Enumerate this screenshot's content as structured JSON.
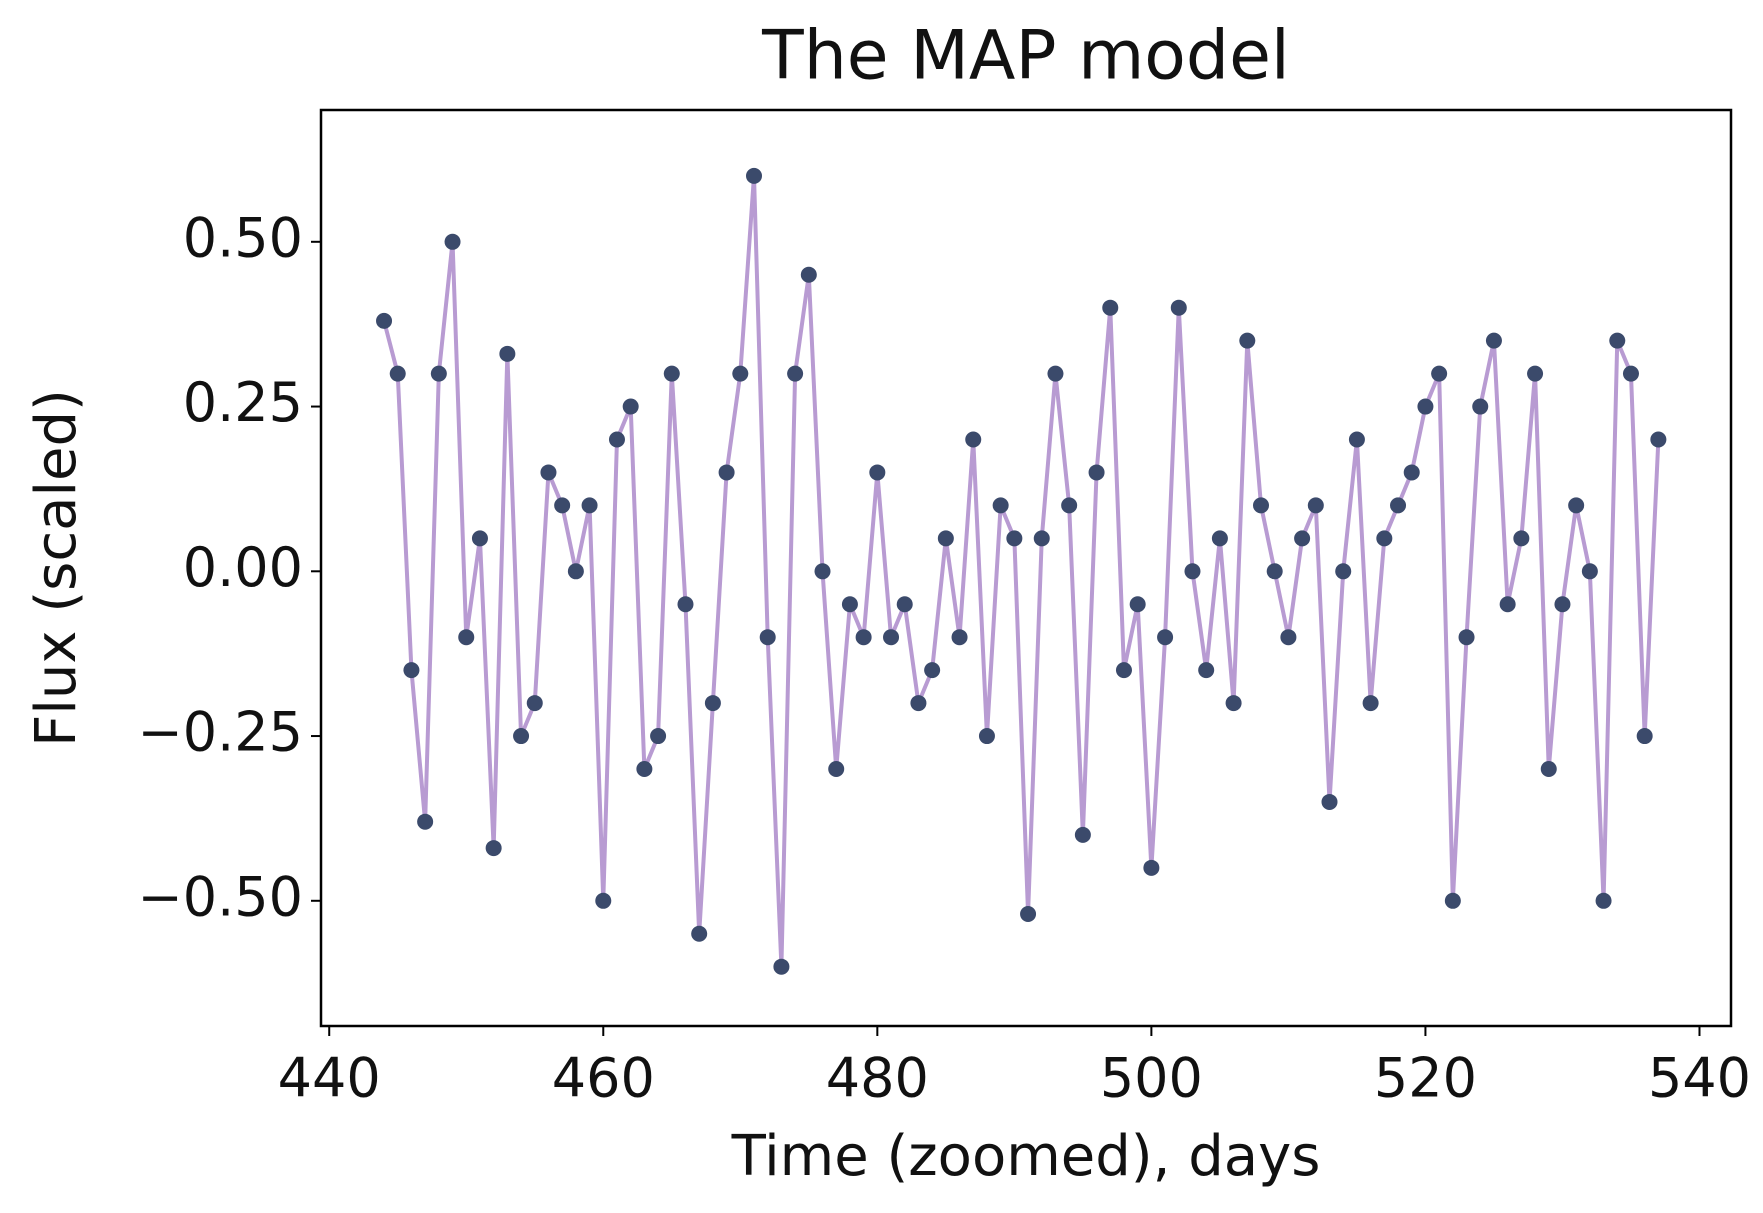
{
  "chart_data": {
    "type": "scatter",
    "title": "The MAP model",
    "xlabel": "Time (zoomed), days",
    "ylabel": "Flux (scaled)",
    "xlim": [
      439.4,
      542.3
    ],
    "ylim": [
      -0.69,
      0.7
    ],
    "xticks": [
      440,
      460,
      480,
      500,
      520,
      540
    ],
    "yticks": [
      {
        "value": -0.5,
        "label": "−0.50"
      },
      {
        "value": -0.25,
        "label": "−0.25"
      },
      {
        "value": 0,
        "label": "0.00"
      },
      {
        "value": 0.25,
        "label": "0.25"
      },
      {
        "value": 0.5,
        "label": "0.50"
      }
    ],
    "grid": false,
    "x": [
      444,
      445,
      446,
      447,
      448,
      449,
      450,
      451,
      452,
      453,
      454,
      455,
      456,
      457,
      458,
      459,
      460,
      461,
      462,
      463,
      464,
      465,
      466,
      467,
      468,
      469,
      470,
      471,
      472,
      473,
      474,
      475,
      476,
      477,
      478,
      479,
      480,
      481,
      482,
      483,
      484,
      485,
      486,
      487,
      488,
      489,
      490,
      491,
      492,
      493,
      494,
      495,
      496,
      497,
      498,
      499,
      500,
      501,
      502,
      503,
      504,
      505,
      506,
      507,
      508,
      509,
      510,
      511,
      512,
      513,
      514,
      515,
      516,
      517,
      518,
      519,
      520,
      521,
      522,
      523,
      524,
      525,
      526,
      527,
      528,
      529,
      530,
      531,
      532,
      533,
      534,
      535,
      536,
      537
    ],
    "series": [
      {
        "style": "line",
        "color": "#b89bd2",
        "values": [
          0.38,
          0.3,
          -0.15,
          -0.38,
          0.3,
          0.5,
          -0.1,
          0.05,
          -0.42,
          0.33,
          -0.25,
          -0.2,
          0.15,
          0.1,
          0.0,
          0.1,
          -0.5,
          0.2,
          0.25,
          -0.3,
          -0.25,
          0.3,
          -0.05,
          -0.55,
          -0.2,
          0.15,
          0.3,
          0.6,
          -0.1,
          -0.6,
          0.3,
          0.45,
          0.0,
          -0.3,
          -0.05,
          -0.1,
          0.15,
          -0.1,
          -0.05,
          -0.2,
          -0.15,
          0.05,
          -0.1,
          0.2,
          -0.25,
          0.1,
          0.05,
          -0.52,
          0.05,
          0.3,
          0.1,
          -0.4,
          0.15,
          0.4,
          -0.15,
          -0.05,
          -0.45,
          -0.1,
          0.4,
          0.0,
          -0.15,
          0.05,
          -0.2,
          0.35,
          0.1,
          0.0,
          -0.1,
          0.05,
          0.1,
          -0.35,
          0.0,
          0.2,
          -0.2,
          0.05,
          0.1,
          0.15,
          0.25,
          0.3,
          -0.5,
          -0.1,
          0.25,
          0.35,
          -0.05,
          0.05,
          0.3,
          -0.3,
          -0.05,
          0.1,
          0.0,
          -0.5,
          0.35,
          0.3,
          -0.25,
          0.2
        ]
      },
      {
        "style": "points",
        "color": "#3b4a6b",
        "values": [
          0.38,
          0.3,
          -0.15,
          -0.38,
          0.3,
          0.5,
          -0.1,
          0.05,
          -0.42,
          0.33,
          -0.25,
          -0.2,
          0.15,
          0.1,
          0.0,
          0.1,
          -0.5,
          0.2,
          0.25,
          -0.3,
          -0.25,
          0.3,
          -0.05,
          -0.55,
          -0.2,
          0.15,
          0.3,
          0.6,
          -0.1,
          -0.6,
          0.3,
          0.45,
          0.0,
          -0.3,
          -0.05,
          -0.1,
          0.15,
          -0.1,
          -0.05,
          -0.2,
          -0.15,
          0.05,
          -0.1,
          0.2,
          -0.25,
          0.1,
          0.05,
          -0.52,
          0.05,
          0.3,
          0.1,
          -0.4,
          0.15,
          0.4,
          -0.15,
          -0.05,
          -0.45,
          -0.1,
          0.4,
          0.0,
          -0.15,
          0.05,
          -0.2,
          0.35,
          0.1,
          0.0,
          -0.1,
          0.05,
          0.1,
          -0.35,
          0.0,
          0.2,
          -0.2,
          0.05,
          0.1,
          0.15,
          0.25,
          0.3,
          -0.5,
          -0.1,
          0.25,
          0.35,
          -0.05,
          0.05,
          0.3,
          -0.3,
          -0.05,
          0.1,
          0.0,
          -0.5,
          0.35,
          0.3,
          -0.25,
          0.2
        ]
      }
    ]
  }
}
